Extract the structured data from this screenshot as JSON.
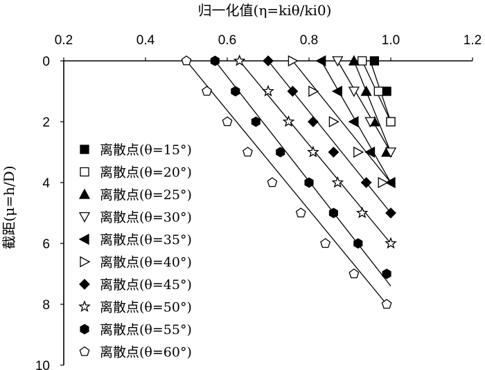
{
  "chart_data": {
    "type": "scatter",
    "xlabel": "归一化值(η=kiθ/ki0)",
    "ylabel": "截距(μ=h/D)",
    "xlim": [
      0.2,
      1.2
    ],
    "ylim": [
      0,
      10
    ],
    "x_ticks": [
      "0.2",
      "0.4",
      "0.6",
      "0.8",
      "1.0",
      "1.2"
    ],
    "y_ticks": [
      "0",
      "2",
      "4",
      "6",
      "8",
      "10"
    ],
    "x_axis_position": "top",
    "y_axis_reversed": true,
    "grid": false,
    "legend_position": "left",
    "series": [
      {
        "name": "离散点(θ=15°)",
        "marker": "square-filled",
        "points": [
          [
            0.96,
            0
          ],
          [
            0.99,
            1
          ],
          [
            1.0,
            2
          ]
        ],
        "fit": [
          [
            0.95,
            0
          ],
          [
            1.0,
            2
          ]
        ]
      },
      {
        "name": "离散点(θ=20°)",
        "marker": "square-open",
        "points": [
          [
            0.93,
            0
          ],
          [
            0.97,
            1
          ],
          [
            1.0,
            2
          ]
        ],
        "fit": [
          [
            0.93,
            0
          ],
          [
            1.0,
            2
          ]
        ]
      },
      {
        "name": "离散点(θ=25°)",
        "marker": "triangle-up-filled",
        "points": [
          [
            0.91,
            0
          ],
          [
            0.94,
            1
          ],
          [
            0.96,
            2
          ],
          [
            0.99,
            3
          ]
        ],
        "fit": [
          [
            0.91,
            0
          ],
          [
            1.0,
            3
          ]
        ]
      },
      {
        "name": "离散点(θ=30°)",
        "marker": "triangle-down-open",
        "points": [
          [
            0.87,
            0
          ],
          [
            0.91,
            1
          ],
          [
            0.95,
            2
          ],
          [
            1.0,
            3
          ]
        ],
        "fit": [
          [
            0.87,
            0
          ],
          [
            1.0,
            3
          ]
        ]
      },
      {
        "name": "离散点(θ=35°)",
        "marker": "triangle-left-filled",
        "points": [
          [
            0.83,
            0
          ],
          [
            0.87,
            1
          ],
          [
            0.91,
            2
          ],
          [
            0.95,
            3
          ],
          [
            1.0,
            4
          ]
        ],
        "fit": [
          [
            0.83,
            0
          ],
          [
            1.0,
            4
          ]
        ]
      },
      {
        "name": "离散点(θ=40°)",
        "marker": "triangle-right-open",
        "points": [
          [
            0.76,
            0
          ],
          [
            0.81,
            1
          ],
          [
            0.86,
            2
          ],
          [
            0.92,
            3
          ],
          [
            0.98,
            4
          ]
        ],
        "fit": [
          [
            0.76,
            0
          ],
          [
            1.0,
            4
          ]
        ]
      },
      {
        "name": "离散点(θ=45°)",
        "marker": "diamond-filled",
        "points": [
          [
            0.7,
            0
          ],
          [
            0.76,
            1
          ],
          [
            0.81,
            2
          ],
          [
            0.86,
            3
          ],
          [
            0.94,
            4
          ],
          [
            1.0,
            5
          ]
        ],
        "fit": [
          [
            0.7,
            0
          ],
          [
            1.0,
            5
          ]
        ]
      },
      {
        "name": "离散点(θ=50°)",
        "marker": "star-open",
        "points": [
          [
            0.63,
            0
          ],
          [
            0.7,
            1
          ],
          [
            0.75,
            2
          ],
          [
            0.81,
            3
          ],
          [
            0.87,
            4
          ],
          [
            0.93,
            5
          ],
          [
            1.0,
            6
          ]
        ],
        "fit": [
          [
            0.63,
            0
          ],
          [
            1.0,
            6
          ]
        ]
      },
      {
        "name": "离散点(θ=55°)",
        "marker": "hexagon-filled",
        "points": [
          [
            0.57,
            0
          ],
          [
            0.62,
            1
          ],
          [
            0.67,
            2
          ],
          [
            0.73,
            3
          ],
          [
            0.8,
            4
          ],
          [
            0.86,
            5
          ],
          [
            0.92,
            6
          ],
          [
            0.99,
            7
          ]
        ],
        "fit": [
          [
            0.57,
            0
          ],
          [
            1.0,
            7.4
          ]
        ]
      },
      {
        "name": "离散点(θ=60°)",
        "marker": "pentagon-open",
        "points": [
          [
            0.5,
            0
          ],
          [
            0.55,
            1
          ],
          [
            0.6,
            2
          ],
          [
            0.65,
            3
          ],
          [
            0.71,
            4
          ],
          [
            0.78,
            5
          ],
          [
            0.84,
            6
          ],
          [
            0.91,
            7
          ],
          [
            0.99,
            8
          ]
        ],
        "fit": [
          [
            0.5,
            0
          ],
          [
            0.99,
            8
          ]
        ]
      }
    ]
  }
}
